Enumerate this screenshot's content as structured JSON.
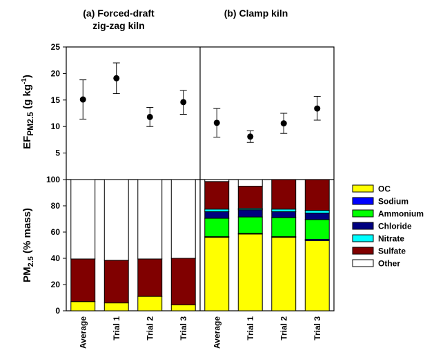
{
  "colors": {
    "OC": "#ffff00",
    "Sodium": "#0000ff",
    "Ammonium": "#00ff00",
    "Chloride": "#00007f",
    "Nitrate": "#00ffff",
    "Sulfate": "#800000",
    "Other": "#ffffff"
  },
  "chart_data": [
    {
      "type": "scatter",
      "panel": "(a) Forced-draft zig-zag kiln — emission factor",
      "title_lines": [
        "(a) Forced-draft",
        "zig-zag kiln"
      ],
      "ylabel": "EFPM2.5 (g kg-1)",
      "ylim": [
        0,
        25
      ],
      "yticks": [
        5,
        10,
        15,
        20,
        25
      ],
      "categories": [
        "Average",
        "Trial 1",
        "Trial 2",
        "Trial 3"
      ],
      "values": [
        15.1,
        19.1,
        11.8,
        14.6
      ],
      "error_low": [
        11.4,
        16.2,
        10.0,
        12.3
      ],
      "error_high": [
        18.8,
        22.0,
        13.6,
        16.8
      ]
    },
    {
      "type": "scatter",
      "panel": "(b) Clamp kiln — emission factor",
      "title_lines": [
        "(b) Clamp kiln"
      ],
      "ylim": [
        0,
        25
      ],
      "categories": [
        "Average",
        "Trial 1",
        "Trial 2",
        "Trial 3"
      ],
      "values": [
        10.7,
        8.1,
        10.6,
        13.4
      ],
      "error_low": [
        8.0,
        7.0,
        8.7,
        11.2
      ],
      "error_high": [
        13.4,
        9.2,
        12.5,
        15.7
      ]
    },
    {
      "type": "bar",
      "stacked": true,
      "panel": "(a) Forced-draft zig-zag kiln — composition",
      "ylabel": "PM2.5 (% mass)",
      "ylim": [
        0,
        100
      ],
      "yticks": [
        0,
        20,
        40,
        60,
        80,
        100
      ],
      "categories": [
        "Average",
        "Trial 1",
        "Trial 2",
        "Trial 3"
      ],
      "series": [
        {
          "name": "OC",
          "values": [
            7.0,
            6.0,
            11.0,
            4.5
          ]
        },
        {
          "name": "Sodium",
          "values": [
            0,
            0,
            0,
            0
          ]
        },
        {
          "name": "Ammonium",
          "values": [
            0,
            0,
            0,
            0
          ]
        },
        {
          "name": "Chloride",
          "values": [
            0,
            0,
            0,
            0
          ]
        },
        {
          "name": "Nitrate",
          "values": [
            0,
            0,
            0,
            0
          ]
        },
        {
          "name": "Sulfate",
          "values": [
            32.5,
            32.5,
            28.5,
            35.5
          ]
        },
        {
          "name": "Other",
          "values": [
            60.5,
            61.5,
            60.5,
            60.0
          ]
        }
      ]
    },
    {
      "type": "bar",
      "stacked": true,
      "panel": "(b) Clamp kiln — composition",
      "ylim": [
        0,
        100
      ],
      "categories": [
        "Average",
        "Trial 1",
        "Trial 2",
        "Trial 3"
      ],
      "series": [
        {
          "name": "OC",
          "values": [
            56.0,
            58.5,
            56.0,
            53.5
          ]
        },
        {
          "name": "Sodium",
          "values": [
            0.5,
            0.5,
            0.5,
            1.0
          ]
        },
        {
          "name": "Ammonium",
          "values": [
            14.0,
            12.5,
            14.5,
            15.0
          ]
        },
        {
          "name": "Chloride",
          "values": [
            5.0,
            5.5,
            4.5,
            5.0
          ]
        },
        {
          "name": "Nitrate",
          "values": [
            2.0,
            1.0,
            2.0,
            2.0
          ]
        },
        {
          "name": "Sulfate",
          "values": [
            21.0,
            17.0,
            22.5,
            23.5
          ]
        },
        {
          "name": "Other",
          "values": [
            1.5,
            5.0,
            0,
            0
          ]
        }
      ]
    }
  ],
  "legend": [
    "OC",
    "Sodium",
    "Ammonium",
    "Chloride",
    "Nitrate",
    "Sulfate",
    "Other"
  ]
}
